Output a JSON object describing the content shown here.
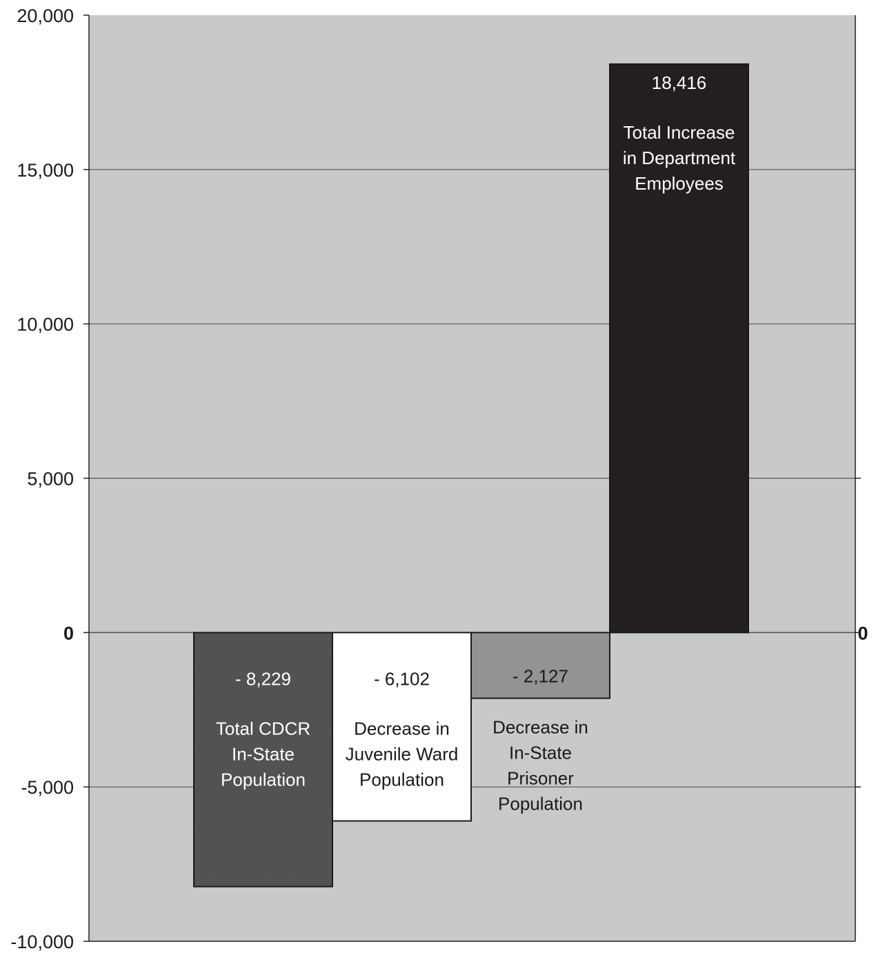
{
  "chart_data": {
    "type": "bar",
    "chart_style": "waterfall",
    "ylim": [
      -10000,
      20000
    ],
    "yticks": [
      {
        "value": 20000,
        "label": "20,000"
      },
      {
        "value": 15000,
        "label": "15,000"
      },
      {
        "value": 10000,
        "label": "10,000"
      },
      {
        "value": 5000,
        "label": "5,000"
      },
      {
        "value": 0,
        "label": "0"
      },
      {
        "value": -5000,
        "label": "-5,000"
      },
      {
        "value": -10000,
        "label": "-10,000"
      }
    ],
    "right_axis_label": "0",
    "grid": true,
    "colors": {
      "plot_background": "#c8c9cb",
      "gridline": "#555555",
      "axis": "#222222"
    },
    "bars": [
      {
        "category": "Total CDCR In-State Population",
        "value_label": "- 8,229",
        "label_lines": [
          "Total CDCR",
          "In-State",
          "Population"
        ],
        "start": 0,
        "end": -8229,
        "value": -8229,
        "fill": "#555555",
        "text_color": "#ffffff"
      },
      {
        "category": "Decrease in Juvenile Ward Population",
        "value_label": "- 6,102",
        "label_lines": [
          "Decrease in",
          "Juvenile Ward",
          "Population"
        ],
        "start": 0,
        "end": -6102,
        "value": -6102,
        "fill": "#ffffff",
        "text_color": "#1a1a1a"
      },
      {
        "category": "Decrease in In-State Prisoner Population",
        "value_label": "- 2,127",
        "label_lines": [
          "Decrease in",
          "In-State",
          "Prisoner",
          "Population"
        ],
        "start": 0,
        "end": -2127,
        "value": -2127,
        "fill": "#939394",
        "text_color": "#1a1a1a"
      },
      {
        "category": "Total Increase in Department Employees",
        "value_label": "18,416",
        "label_lines": [
          "Total Increase",
          "in Department",
          "Employees"
        ],
        "start": 0,
        "end": 18416,
        "value": 18416,
        "fill": "#231f20",
        "text_color": "#ffffff"
      }
    ]
  }
}
